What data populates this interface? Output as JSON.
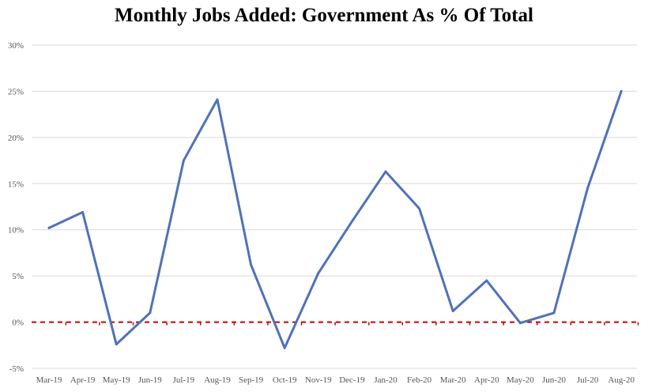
{
  "chart_data": {
    "type": "line",
    "title": "Monthly Jobs Added: Government As % Of  Total",
    "xlabel": "",
    "ylabel": "",
    "categories": [
      "Mar-19",
      "Apr-19",
      "May-19",
      "Jun-19",
      "Jul-19",
      "Aug-19",
      "Sep-19",
      "Oct-19",
      "Nov-19",
      "Dec-19",
      "Jan-20",
      "Feb-20",
      "Mar-20",
      "Apr-20",
      "May-20",
      "Jun-20",
      "Jul-20",
      "Aug-20"
    ],
    "series": [
      {
        "values": [
          10.2,
          11.9,
          -2.4,
          1.0,
          17.5,
          24.1,
          6.2,
          -2.8,
          5.3,
          10.9,
          16.3,
          12.3,
          1.2,
          4.5,
          -0.1,
          1.0,
          14.5,
          25.0
        ],
        "color": "#4f72b8"
      }
    ],
    "ylim": [
      -5,
      30
    ],
    "y_ticks": [
      30,
      25,
      20,
      15,
      10,
      5,
      0,
      -5
    ],
    "y_tick_labels": [
      "30%",
      "25%",
      "20%",
      "15%",
      "10%",
      "5%",
      "0%",
      "-5%"
    ],
    "grid": true,
    "legend": "none",
    "zero_line": {
      "value": 0,
      "color": "#cc0000",
      "style": "dashed"
    },
    "grid_color": "#d9d9d9"
  }
}
